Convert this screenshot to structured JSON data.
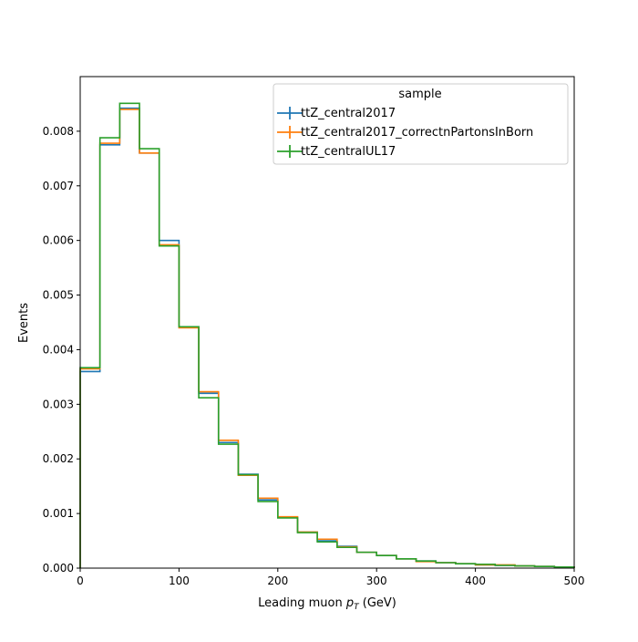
{
  "chart_data": {
    "type": "line",
    "title": "",
    "xlabel_main": "Leading muon ",
    "xlabel_var": "p",
    "xlabel_sub": "T",
    "xlabel_unit": " (GeV)",
    "ylabel": "Events",
    "xlim": [
      0,
      500
    ],
    "ylim": [
      0,
      0.009
    ],
    "x_ticks": [
      0,
      100,
      200,
      300,
      400,
      500
    ],
    "x_tick_labels": [
      "0",
      "100",
      "200",
      "300",
      "400",
      "500"
    ],
    "y_ticks": [
      0,
      0.001,
      0.002,
      0.003,
      0.004,
      0.005,
      0.006,
      0.007,
      0.008
    ],
    "y_tick_labels": [
      "0.000",
      "0.001",
      "0.002",
      "0.003",
      "0.004",
      "0.005",
      "0.006",
      "0.007",
      "0.008"
    ],
    "grid": false,
    "legend": {
      "title": "sample",
      "position": "top-right"
    },
    "bin_edges": [
      0,
      20,
      40,
      60,
      80,
      100,
      120,
      140,
      160,
      180,
      200,
      220,
      240,
      260,
      280,
      300,
      320,
      340,
      360,
      380,
      400,
      420,
      440,
      460,
      480,
      500
    ],
    "series": [
      {
        "name": "ttZ_central2017",
        "color": "#1f77b4",
        "values": [
          0.0036,
          0.00775,
          0.00842,
          0.0076,
          0.006,
          0.00442,
          0.0032,
          0.0023,
          0.00172,
          0.00125,
          0.00093,
          0.00066,
          0.0005,
          0.0004,
          0.00029,
          0.00023,
          0.00017,
          0.00013,
          0.0001,
          8e-05,
          6e-05,
          5e-05,
          4e-05,
          3e-05,
          2e-05
        ]
      },
      {
        "name": "ttZ_central2017_correctnPartonsInBorn",
        "color": "#ff7f0e",
        "values": [
          0.00365,
          0.00778,
          0.0084,
          0.0076,
          0.00592,
          0.0044,
          0.00323,
          0.00234,
          0.0017,
          0.00128,
          0.00094,
          0.00066,
          0.00053,
          0.00039,
          0.00029,
          0.00023,
          0.00017,
          0.00012,
          0.0001,
          8e-05,
          6e-05,
          6e-05,
          4e-05,
          3e-05,
          2e-05
        ]
      },
      {
        "name": "ttZ_centralUL17",
        "color": "#2ca02c",
        "values": [
          0.00367,
          0.00788,
          0.00851,
          0.00768,
          0.0059,
          0.00442,
          0.00312,
          0.00227,
          0.00171,
          0.00122,
          0.00092,
          0.00065,
          0.00048,
          0.00038,
          0.00029,
          0.00023,
          0.00017,
          0.00013,
          0.0001,
          8e-05,
          7e-05,
          5e-05,
          4e-05,
          3e-05,
          2e-05
        ]
      }
    ]
  }
}
